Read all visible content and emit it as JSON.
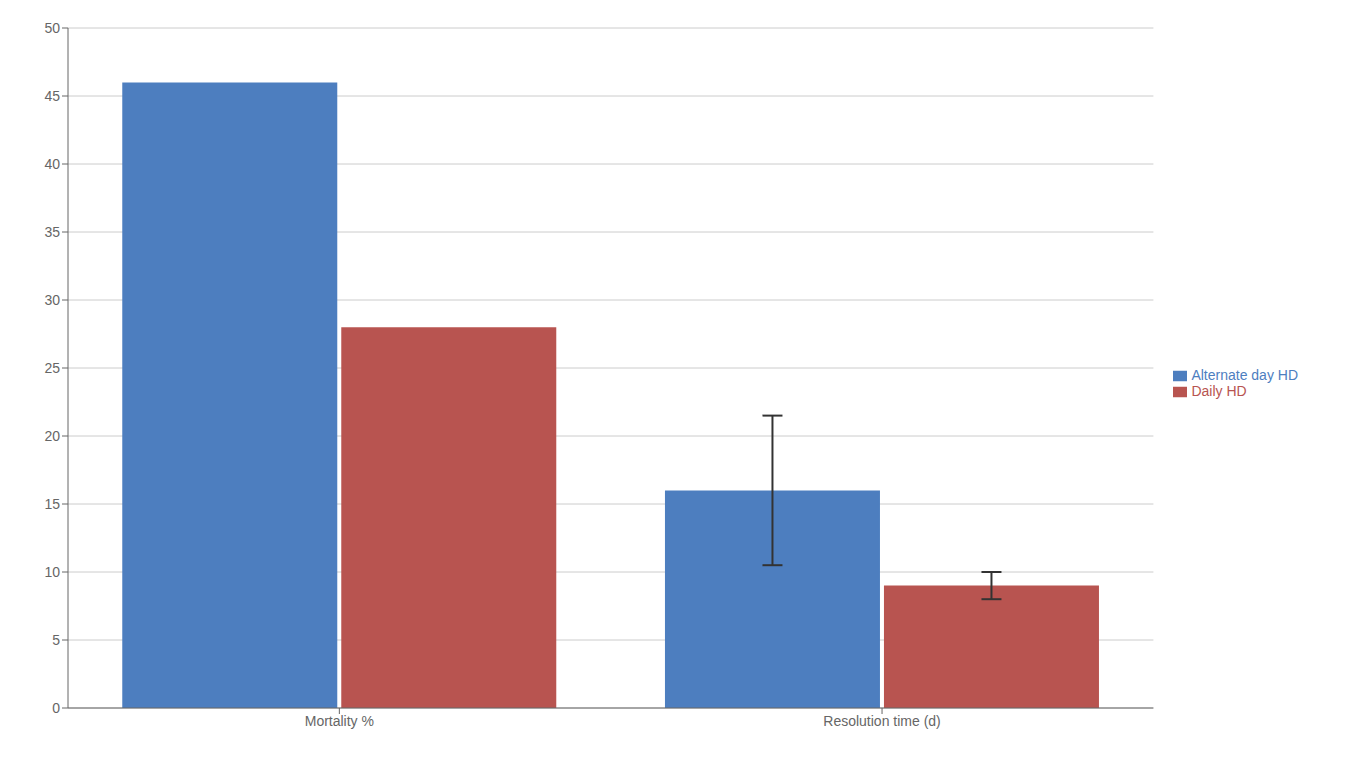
{
  "chart_data": {
    "type": "bar",
    "categories": [
      "Mortality %",
      "Resolution time (d)"
    ],
    "series": [
      {
        "name": "Alternate day HD",
        "color": "#4d7ebf",
        "values": [
          46,
          16
        ],
        "error": [
          0,
          5.5
        ]
      },
      {
        "name": "Daily HD",
        "color": "#B85450",
        "values": [
          28,
          9
        ],
        "error": [
          0,
          1.0
        ]
      }
    ],
    "ylim": [
      0,
      50
    ],
    "yticks": [
      0,
      5,
      10,
      15,
      20,
      25,
      30,
      35,
      40,
      45,
      50
    ],
    "grid": true,
    "legend": "right"
  }
}
